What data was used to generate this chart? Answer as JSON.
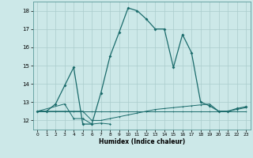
{
  "xlabel": "Humidex (Indice chaleur)",
  "bg_color": "#cce8e8",
  "grid_color": "#aacccc",
  "line_color": "#1a6b6b",
  "x_values": [
    0,
    1,
    2,
    3,
    4,
    5,
    6,
    7,
    8,
    9,
    10,
    11,
    12,
    13,
    14,
    15,
    16,
    17,
    18,
    19,
    20,
    21,
    22,
    23
  ],
  "series_main": [
    12.5,
    12.5,
    12.9,
    13.9,
    14.9,
    11.8,
    11.8,
    13.5,
    15.5,
    16.8,
    18.15,
    18.0,
    17.55,
    17.0,
    17.0,
    14.9,
    16.7,
    15.7,
    13.0,
    12.8,
    12.5,
    12.5,
    12.65,
    12.75
  ],
  "series_flat1": [
    12.5,
    12.5,
    12.5,
    12.5,
    12.5,
    12.5,
    12.5,
    12.5,
    12.5,
    12.5,
    12.5,
    12.5,
    12.5,
    12.5,
    12.5,
    12.5,
    12.5,
    12.5,
    12.5,
    12.5,
    12.5,
    12.5,
    12.5,
    12.5
  ],
  "series_flat2": [
    12.5,
    12.5,
    12.5,
    12.5,
    12.5,
    12.5,
    12.0,
    12.0,
    12.1,
    12.2,
    12.3,
    12.4,
    12.5,
    12.6,
    12.65,
    12.7,
    12.75,
    12.8,
    12.85,
    12.9,
    12.5,
    12.5,
    12.6,
    12.7
  ],
  "series_short": [
    12.5,
    null,
    null,
    12.9,
    12.1,
    12.1,
    11.8,
    11.85,
    11.8,
    null,
    null,
    null,
    null,
    null,
    null,
    null,
    null,
    null,
    null,
    null,
    null,
    null,
    null,
    null
  ],
  "ylim": [
    11.5,
    18.5
  ],
  "yticks": [
    12,
    13,
    14,
    15,
    16,
    17,
    18
  ],
  "xlim": [
    -0.5,
    23.5
  ],
  "xticks": [
    0,
    1,
    2,
    3,
    4,
    5,
    6,
    7,
    8,
    9,
    10,
    11,
    12,
    13,
    14,
    15,
    16,
    17,
    18,
    19,
    20,
    21,
    22,
    23
  ]
}
